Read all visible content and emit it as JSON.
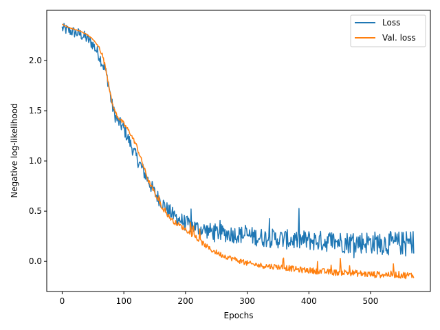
{
  "chart_data": {
    "type": "line",
    "title": "",
    "xlabel": "Epochs",
    "ylabel": "Negative log-likelihood",
    "xlim": [
      -25,
      597
    ],
    "ylim": [
      -0.3,
      2.5
    ],
    "xticks": [
      0,
      100,
      200,
      300,
      400,
      500
    ],
    "yticks": [
      0.0,
      0.5,
      1.0,
      1.5,
      2.0
    ],
    "grid": false,
    "legend_position": "top-right",
    "series": [
      {
        "name": "Loss",
        "color": "#1f77b4",
        "style": "noisy",
        "x": [
          0,
          10,
          20,
          30,
          40,
          50,
          60,
          70,
          75,
          80,
          85,
          90,
          100,
          110,
          120,
          130,
          140,
          150,
          160,
          170,
          180,
          190,
          200,
          220,
          240,
          260,
          280,
          300,
          320,
          340,
          360,
          380,
          400,
          420,
          440,
          460,
          480,
          500,
          520,
          540,
          560,
          570
        ],
        "y": [
          2.32,
          2.3,
          2.28,
          2.26,
          2.22,
          2.16,
          2.05,
          1.9,
          1.78,
          1.58,
          1.46,
          1.4,
          1.32,
          1.18,
          1.04,
          0.92,
          0.8,
          0.68,
          0.6,
          0.52,
          0.46,
          0.42,
          0.38,
          0.33,
          0.3,
          0.28,
          0.27,
          0.26,
          0.24,
          0.23,
          0.22,
          0.21,
          0.21,
          0.2,
          0.2,
          0.19,
          0.19,
          0.19,
          0.18,
          0.18,
          0.18,
          0.2
        ],
        "noise": 0.055,
        "noise_growth": 0.00012
      },
      {
        "name": "Val. loss",
        "color": "#ff7f0e",
        "style": "smooth",
        "x": [
          0,
          10,
          20,
          30,
          40,
          50,
          60,
          65,
          70,
          75,
          80,
          85,
          90,
          100,
          110,
          120,
          130,
          140,
          150,
          160,
          170,
          180,
          190,
          200,
          220,
          240,
          260,
          280,
          300,
          320,
          340,
          360,
          380,
          400,
          420,
          440,
          460,
          480,
          500,
          520,
          540,
          560,
          570
        ],
        "y": [
          2.36,
          2.33,
          2.31,
          2.29,
          2.26,
          2.21,
          2.13,
          2.06,
          1.94,
          1.78,
          1.6,
          1.5,
          1.44,
          1.37,
          1.28,
          1.16,
          0.98,
          0.8,
          0.68,
          0.56,
          0.47,
          0.4,
          0.36,
          0.32,
          0.22,
          0.12,
          0.06,
          0.02,
          -0.02,
          -0.04,
          -0.05,
          -0.06,
          -0.08,
          -0.09,
          -0.1,
          -0.11,
          -0.11,
          -0.12,
          -0.13,
          -0.13,
          -0.13,
          -0.14,
          -0.14
        ],
        "noise": 0.018,
        "noise_growth": 3e-05
      }
    ]
  }
}
